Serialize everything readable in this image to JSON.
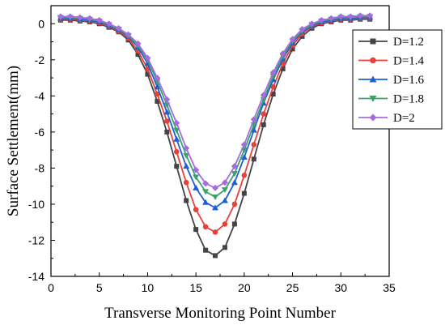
{
  "chart_data": {
    "type": "line",
    "xlabel": "Transverse Monitoring Point Number",
    "ylabel": "Surface Settlement(mm)",
    "xlim": [
      0,
      35
    ],
    "ylim": [
      -14,
      1
    ],
    "xticks": [
      0,
      5,
      10,
      15,
      20,
      25,
      30,
      35
    ],
    "yticks": [
      0,
      -2,
      -4,
      -6,
      -8,
      -10,
      -12,
      -14
    ],
    "grid": false,
    "legend_position": "top-right",
    "x": [
      1,
      2,
      3,
      4,
      5,
      6,
      7,
      8,
      9,
      10,
      11,
      12,
      13,
      14,
      15,
      16,
      17,
      18,
      19,
      20,
      21,
      22,
      23,
      24,
      25,
      26,
      27,
      28,
      29,
      30,
      31,
      32,
      33
    ],
    "series": [
      {
        "name": "D=1.2",
        "color": "#444444",
        "marker": "square",
        "values": [
          0.2,
          0.2,
          0.15,
          0.1,
          0.0,
          -0.2,
          -0.45,
          -0.9,
          -1.7,
          -2.8,
          -4.3,
          -6.0,
          -7.9,
          -9.8,
          -11.4,
          -12.55,
          -12.85,
          -12.4,
          -11.1,
          -9.4,
          -7.5,
          -5.6,
          -3.9,
          -2.5,
          -1.4,
          -0.7,
          -0.25,
          0.0,
          0.1,
          0.2,
          0.2,
          0.25,
          0.25
        ]
      },
      {
        "name": "D=1.4",
        "color": "#e8413a",
        "marker": "circle",
        "values": [
          0.25,
          0.25,
          0.2,
          0.15,
          0.05,
          -0.15,
          -0.4,
          -0.8,
          -1.5,
          -2.5,
          -3.9,
          -5.4,
          -7.1,
          -8.8,
          -10.3,
          -11.25,
          -11.55,
          -11.1,
          -10.0,
          -8.4,
          -6.7,
          -5.0,
          -3.5,
          -2.2,
          -1.2,
          -0.55,
          -0.15,
          0.05,
          0.15,
          0.25,
          0.25,
          0.3,
          0.3
        ]
      },
      {
        "name": "D=1.6",
        "color": "#1f5fd6",
        "marker": "triangle-up",
        "values": [
          0.3,
          0.3,
          0.25,
          0.2,
          0.1,
          -0.1,
          -0.35,
          -0.7,
          -1.3,
          -2.2,
          -3.5,
          -4.9,
          -6.4,
          -7.9,
          -9.1,
          -9.9,
          -10.2,
          -9.8,
          -8.8,
          -7.4,
          -5.9,
          -4.4,
          -3.1,
          -1.95,
          -1.05,
          -0.45,
          -0.1,
          0.1,
          0.2,
          0.3,
          0.3,
          0.35,
          0.35
        ]
      },
      {
        "name": "D=1.8",
        "color": "#3aa36a",
        "marker": "triangle-down",
        "values": [
          0.35,
          0.35,
          0.3,
          0.25,
          0.15,
          -0.05,
          -0.3,
          -0.65,
          -1.2,
          -2.0,
          -3.2,
          -4.5,
          -5.9,
          -7.3,
          -8.5,
          -9.3,
          -9.6,
          -9.2,
          -8.3,
          -7.0,
          -5.6,
          -4.2,
          -2.9,
          -1.8,
          -0.95,
          -0.4,
          -0.05,
          0.15,
          0.25,
          0.35,
          0.35,
          0.4,
          0.4
        ]
      },
      {
        "name": "D=2",
        "color": "#a66be0",
        "marker": "diamond",
        "values": [
          0.4,
          0.4,
          0.35,
          0.3,
          0.2,
          0.0,
          -0.25,
          -0.6,
          -1.1,
          -1.9,
          -3.0,
          -4.2,
          -5.5,
          -6.9,
          -8.1,
          -8.85,
          -9.1,
          -8.8,
          -7.9,
          -6.7,
          -5.3,
          -3.95,
          -2.7,
          -1.65,
          -0.85,
          -0.3,
          0.0,
          0.2,
          0.3,
          0.4,
          0.4,
          0.45,
          0.45
        ]
      }
    ]
  }
}
